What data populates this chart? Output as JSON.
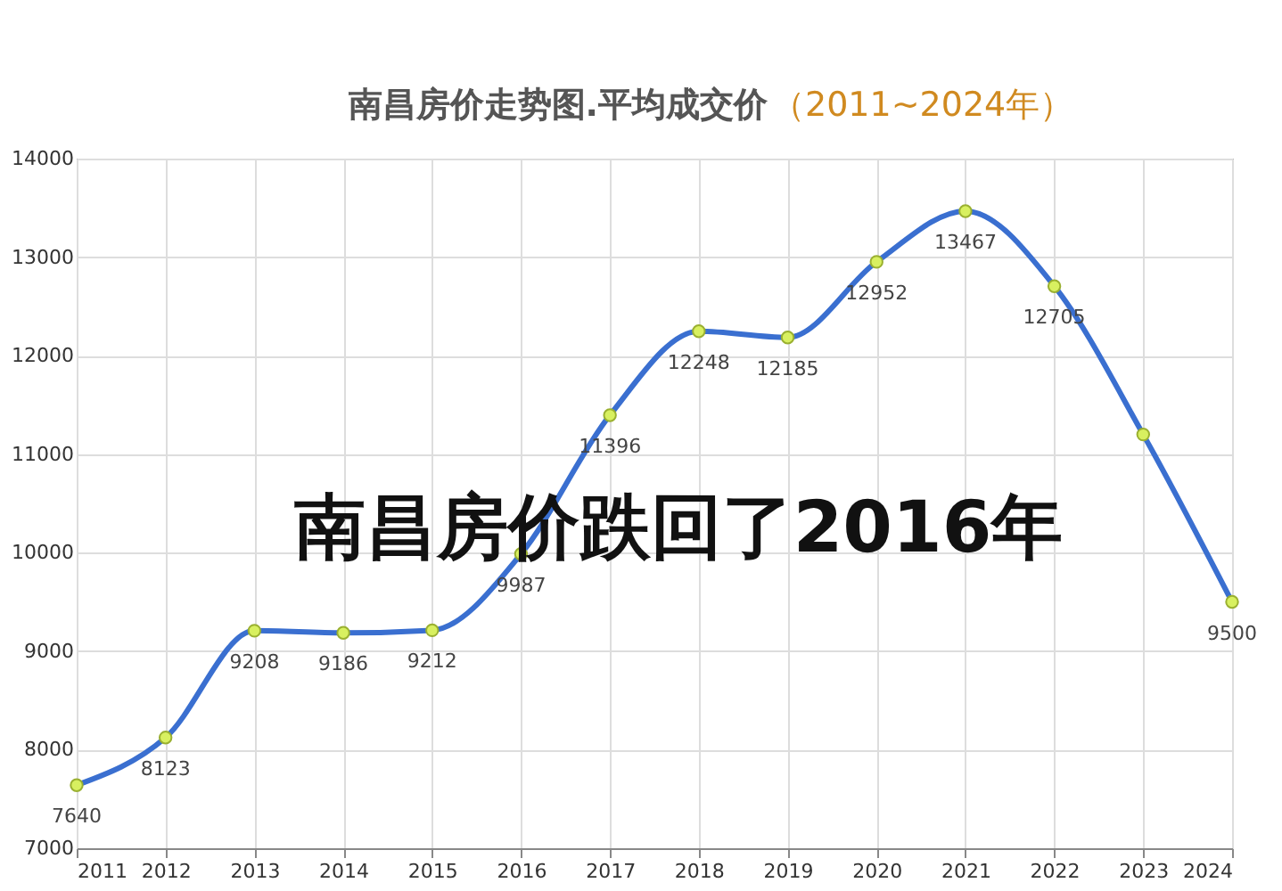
{
  "chart_data": {
    "type": "line",
    "title": "南昌房价走势图.平均成交价",
    "subtitle": "（2011~2024年）",
    "annotations": [
      "南昌房价跌回了2016年"
    ],
    "x": [
      2011,
      2012,
      2013,
      2014,
      2015,
      2016,
      2017,
      2018,
      2019,
      2020,
      2021,
      2022,
      2023,
      2024
    ],
    "series": [
      {
        "color": "#3a6fd0",
        "values": [
          7640,
          8123,
          9208,
          9186,
          9212,
          9987,
          11396,
          12248,
          12185,
          12952,
          13467,
          12705,
          11200,
          9500
        ],
        "value_labels": [
          "7640",
          "8123",
          "9208",
          "9186",
          "9212",
          "9987",
          "11396",
          "12248",
          "12185",
          "12952",
          "13467",
          "12705",
          null,
          "9500"
        ]
      }
    ],
    "xlim": [
      2011,
      2024
    ],
    "xticks": [
      2011,
      2012,
      2013,
      2014,
      2015,
      2016,
      2017,
      2018,
      2019,
      2020,
      2021,
      2022,
      2023,
      2024
    ],
    "ylim": [
      7000,
      14000
    ],
    "yticks": [
      7000,
      8000,
      9000,
      10000,
      11000,
      12000,
      13000,
      14000
    ],
    "grid": true,
    "marker": "circle",
    "line_style": "solid",
    "legend": false
  }
}
